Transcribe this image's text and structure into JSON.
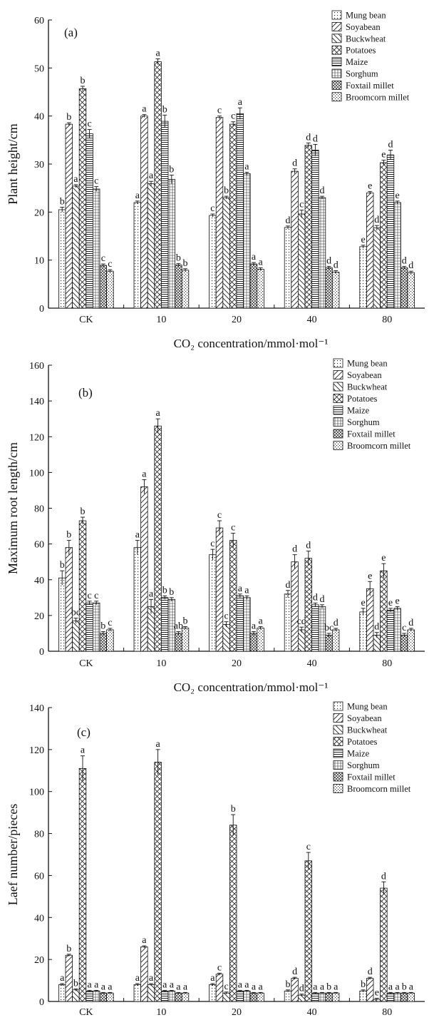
{
  "legend_entries": [
    "Mung bean",
    "Soyabean",
    "Buckwheat",
    "Potatoes",
    "Maize",
    "Sorghum",
    "Foxtail millet",
    "Broomcorn millet"
  ],
  "chart_data": [
    {
      "type": "bar",
      "panel_label": "(a)",
      "title": "",
      "xlabel": "CO₂ concentration/mmol·mol⁻¹",
      "ylabel": "Plant height/cm",
      "categories": [
        "CK",
        "10",
        "20",
        "40",
        "80"
      ],
      "ylim": [
        0,
        60
      ],
      "yticks": [
        0,
        10,
        20,
        30,
        40,
        50,
        60
      ],
      "legend_position": "top-right",
      "series": [
        {
          "name": "Mung bean",
          "values": [
            20.5,
            22.0,
            19.3,
            16.8,
            12.8
          ],
          "errors": [
            0.5,
            0.3,
            0.3,
            0.3,
            0.3
          ],
          "labels": [
            "b",
            "a",
            "c",
            "d",
            "e"
          ]
        },
        {
          "name": "Soyabean",
          "values": [
            38.3,
            40.0,
            39.7,
            28.5,
            24.0
          ],
          "errors": [
            0.3,
            0.3,
            0.3,
            0.5,
            0.3
          ],
          "labels": [
            "b",
            "a",
            "c",
            "d",
            "e"
          ]
        },
        {
          "name": "Buckwheat",
          "values": [
            25.4,
            25.9,
            23.0,
            19.6,
            16.7
          ],
          "errors": [
            0.3,
            0.5,
            0.3,
            0.8,
            0.5
          ],
          "labels": [
            "a",
            "a",
            "b",
            "c",
            "d"
          ]
        },
        {
          "name": "Potatoes",
          "values": [
            45.7,
            51.3,
            38.3,
            33.9,
            30.3
          ],
          "errors": [
            0.5,
            0.6,
            0.5,
            0.5,
            0.5
          ],
          "labels": [
            "b",
            "a",
            "c",
            "d",
            "e"
          ]
        },
        {
          "name": "Maize",
          "values": [
            36.3,
            38.9,
            40.5,
            32.9,
            31.9
          ],
          "errors": [
            0.9,
            1.3,
            1.2,
            1.2,
            1.0
          ],
          "labels": [
            "c",
            "b",
            "a",
            "d",
            "d"
          ]
        },
        {
          "name": "Sorghum",
          "values": [
            24.8,
            26.8,
            28.0,
            23.0,
            22.0
          ],
          "errors": [
            0.5,
            0.9,
            0.3,
            0.3,
            0.3
          ],
          "labels": [
            "c",
            "b",
            "a",
            "d",
            "e"
          ]
        },
        {
          "name": "Foxtail millet",
          "values": [
            8.9,
            9.0,
            9.2,
            8.4,
            8.4
          ],
          "errors": [
            0.3,
            0.3,
            0.3,
            0.3,
            0.3
          ],
          "labels": [
            "c",
            "b",
            "a",
            "d",
            "d"
          ]
        },
        {
          "name": "Broomcorn millet",
          "values": [
            7.7,
            7.9,
            8.1,
            7.5,
            7.4
          ],
          "errors": [
            0.3,
            0.3,
            0.3,
            0.3,
            0.3
          ],
          "labels": [
            "c",
            "b",
            "a",
            "d",
            "d"
          ]
        }
      ]
    },
    {
      "type": "bar",
      "panel_label": "(b)",
      "title": "",
      "xlabel": "CO₂ concentration/mmol·mol⁻¹",
      "ylabel": "Maximum root length/cm",
      "categories": [
        "CK",
        "10",
        "20",
        "40",
        "80"
      ],
      "ylim": [
        0,
        160
      ],
      "yticks": [
        0,
        20,
        40,
        60,
        80,
        100,
        120,
        140,
        160
      ],
      "legend_position": "top-right",
      "series": [
        {
          "name": "Mung bean",
          "values": [
            41,
            58,
            54,
            32,
            22
          ],
          "errors": [
            4,
            4,
            3,
            2,
            2
          ],
          "labels": [
            "b",
            "a",
            "c",
            "d",
            "e"
          ]
        },
        {
          "name": "Soyabean",
          "values": [
            58,
            92,
            69,
            50,
            35
          ],
          "errors": [
            4,
            4,
            4,
            4,
            4
          ],
          "labels": [
            "b",
            "a",
            "c",
            "d",
            "e"
          ]
        },
        {
          "name": "Buckwheat",
          "values": [
            17,
            25,
            15,
            12,
            9
          ],
          "errors": [
            1.5,
            4,
            1.5,
            1.5,
            1.5
          ],
          "labels": [
            "bc",
            "a",
            "c",
            "cd",
            "d"
          ]
        },
        {
          "name": "Potatoes",
          "values": [
            73,
            126,
            62,
            52,
            45
          ],
          "errors": [
            2,
            4,
            4,
            4,
            4
          ],
          "labels": [
            "b",
            "a",
            "c",
            "d",
            "e"
          ]
        },
        {
          "name": "Maize",
          "values": [
            27,
            30,
            31,
            26,
            23
          ],
          "errors": [
            1,
            1,
            1,
            1,
            1
          ],
          "labels": [
            "c",
            "b",
            "a",
            "d",
            "e"
          ]
        },
        {
          "name": "Sorghum",
          "values": [
            27,
            29,
            30,
            25,
            24
          ],
          "errors": [
            1,
            1,
            1,
            1,
            1
          ],
          "labels": [
            "c",
            "b",
            "a",
            "d",
            "e"
          ]
        },
        {
          "name": "Foxtail millet",
          "values": [
            10,
            10,
            10,
            9,
            9
          ],
          "errors": [
            1,
            1,
            1,
            1,
            1
          ],
          "labels": [
            "b",
            "ab",
            "a",
            "bc",
            "c"
          ]
        },
        {
          "name": "Broomcorn millet",
          "values": [
            12,
            13,
            13,
            12,
            12
          ],
          "errors": [
            0.8,
            0.8,
            0.8,
            0.8,
            0.8
          ],
          "labels": [
            "c",
            "b",
            "a",
            "d",
            "d"
          ]
        }
      ]
    },
    {
      "type": "bar",
      "panel_label": "(c)",
      "title": "",
      "xlabel": "CO₂ concentration/mmol·mol⁻¹",
      "ylabel": "Laef number/pieces",
      "categories": [
        "CK",
        "10",
        "20",
        "40",
        "80"
      ],
      "ylim": [
        0,
        140
      ],
      "yticks": [
        0,
        20,
        40,
        60,
        80,
        100,
        120,
        140
      ],
      "legend_position": "top-right",
      "series": [
        {
          "name": "Mung bean",
          "values": [
            8,
            8,
            8,
            5,
            5
          ],
          "errors": [
            0.5,
            0.5,
            0.5,
            0.5,
            0.5
          ],
          "labels": [
            "a",
            "a",
            "a",
            "b",
            "b"
          ]
        },
        {
          "name": "Soyabean",
          "values": [
            22,
            26,
            13,
            11,
            11
          ],
          "errors": [
            0.5,
            0.5,
            0.5,
            0.5,
            0.5
          ],
          "labels": [
            "b",
            "a",
            "c",
            "d",
            "d"
          ]
        },
        {
          "name": "Buckwheat",
          "values": [
            5.5,
            8,
            4,
            3,
            1
          ],
          "errors": [
            0.5,
            0.5,
            0.5,
            0.5,
            0.5
          ],
          "labels": [
            "b",
            "a",
            "c",
            "d",
            "e"
          ]
        },
        {
          "name": "Potatoes",
          "values": [
            111,
            114,
            84,
            67,
            54
          ],
          "errors": [
            6,
            6,
            5,
            4,
            3
          ],
          "labels": [
            "a",
            "a",
            "b",
            "c",
            "d"
          ]
        },
        {
          "name": "Maize",
          "values": [
            5,
            5,
            5,
            4,
            4
          ],
          "errors": [
            0.3,
            0.3,
            0.3,
            0.3,
            0.3
          ],
          "labels": [
            "a",
            "a",
            "a",
            "a",
            "a"
          ]
        },
        {
          "name": "Sorghum",
          "values": [
            5,
            5,
            5,
            4,
            4
          ],
          "errors": [
            0.3,
            0.3,
            0.3,
            0.3,
            0.3
          ],
          "labels": [
            "a",
            "a",
            "a",
            "a",
            "a"
          ]
        },
        {
          "name": "Foxtail millet",
          "values": [
            4,
            4,
            4,
            4,
            4
          ],
          "errors": [
            0.3,
            0.3,
            0.3,
            0.3,
            0.3
          ],
          "labels": [
            "a",
            "a",
            "a",
            "b",
            "b"
          ]
        },
        {
          "name": "Broomcorn millet",
          "values": [
            4,
            4,
            4,
            4,
            4
          ],
          "errors": [
            0.3,
            0.3,
            0.3,
            0.3,
            0.3
          ],
          "labels": [
            "a",
            "a",
            "a",
            "a",
            "a"
          ]
        }
      ]
    }
  ]
}
